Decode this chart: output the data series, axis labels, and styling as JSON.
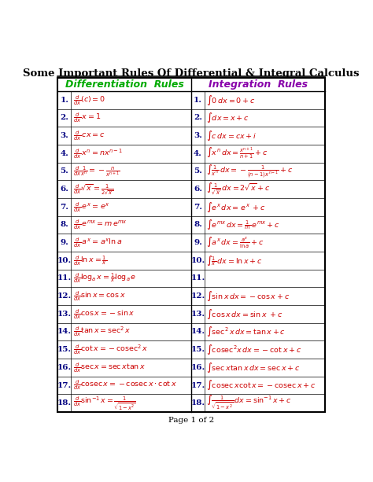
{
  "title": "Some Important Rules Of Differential & Integral Calculus",
  "header_diff": "Differentiation  Rules",
  "header_integ": "Integration  Rules",
  "diff_color": "#00aa00",
  "integ_color": "#8800aa",
  "formula_color": "#cc0000",
  "number_color": "#000080",
  "bg_color": "#ffffff",
  "border_color": "#000000",
  "footer": "Page 1 of 2",
  "diff_formulas": [
    "$\\frac{d}{dx}(c) = 0$",
    "$\\frac{d}{dx}\\,x = 1$",
    "$\\frac{d}{dx}\\,cx = c$",
    "$\\frac{d}{dx}\\,x^n = nx^{n-1}$",
    "$\\frac{d}{dx}\\frac{1}{x^n} = -\\frac{n}{x^{n+1}}$",
    "$\\frac{d}{dx}\\sqrt{x} = \\frac{1}{2\\sqrt{x}}$",
    "$\\frac{d}{dx}\\,e^x =\\, e^x$",
    "$\\frac{d}{dx}\\,e^{mx} = m\\,e^{mx}$",
    "$\\frac{d}{dx}\\,a^x =\\, a^x\\ln a$",
    "$\\frac{d}{dx}\\ln x = \\frac{1}{x}$",
    "$\\frac{d}{dx}\\log_a x = \\frac{1}{x}\\log_a e$",
    "$\\frac{d}{dx}\\sin x = \\cos x$",
    "$\\frac{d}{dx}\\cos x = -\\sin x$",
    "$\\frac{d}{dx}\\tan x = \\sec^2 x$",
    "$\\frac{d}{dx}\\cot x = -\\mathrm{cosec}^2\\, x$",
    "$\\frac{d}{dx}\\sec x = \\sec x\\tan x$",
    "$\\frac{d}{dx}\\mathrm{cosec}\\, x = -\\mathrm{cosec}\\, x \\cdot \\cot x$",
    "$\\frac{d}{dx}\\sin^{-1} x = \\frac{1}{\\sqrt{1-x^2}}$"
  ],
  "integ_formulas": [
    "$\\int 0\\,dx = 0 + c$",
    "$\\int dx = x + c$",
    "$\\int c\\,dx = cx + i$",
    "$\\int x^n\\,dx = \\frac{x^{n+1}}{n+1} + c$",
    "$\\int \\frac{1}{x^n}\\,dx = -\\frac{1}{(n-1)\\,x^{n-1}} + c$",
    "$\\int \\frac{1}{\\sqrt{x}}\\,dx = 2\\sqrt{x} + c$",
    "$\\int e^x\\,dx =\\, e^x\\; + c$",
    "$\\int e^{mx}\\,dx = \\frac{1}{m}\\,e^{mx} + c$",
    "$\\int a^x\\,dx = \\frac{a^x}{\\ln a} + c$",
    "$\\int \\frac{1}{x}\\,dx = \\ln x + c$",
    "",
    "$\\int \\sin x\\,dx = -\\cos x + c$",
    "$\\int \\cos x\\,dx = \\sin x\\; + c$",
    "$\\int \\sec^2 x\\,dx = \\tan x + c$",
    "$\\int \\mathrm{cosec}^2 x\\,dx = -\\cot x + c$",
    "$\\int \\sec x\\tan x\\,dx = \\sec x + c$",
    "$\\int \\mathrm{cosec}\\, x\\cot x = -\\mathrm{cosec}\\, x + c$",
    "$\\int \\frac{1}{\\sqrt{1-x^2}}\\,dx = \\sin^{-1} x + c$"
  ]
}
